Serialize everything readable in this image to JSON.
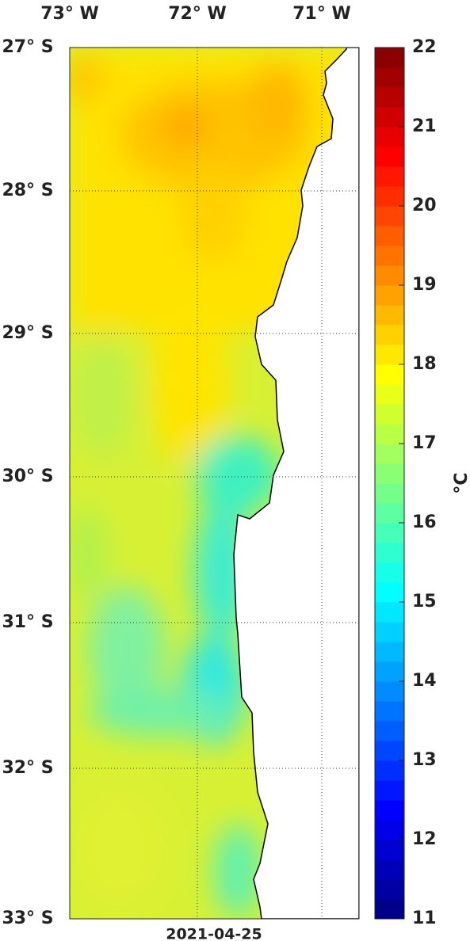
{
  "map": {
    "lon_labels": [
      "73° W",
      "72° W",
      "71° W"
    ],
    "lat_labels": [
      "27° S",
      "28° S",
      "29° S",
      "30° S",
      "31° S",
      "32° S",
      "33° S"
    ],
    "date": "2021-04-25"
  },
  "colorbar": {
    "range": [
      11,
      22
    ],
    "ticks": [
      11,
      12,
      13,
      14,
      15,
      16,
      17,
      18,
      19,
      20,
      21,
      22
    ],
    "label": "°C"
  }
}
